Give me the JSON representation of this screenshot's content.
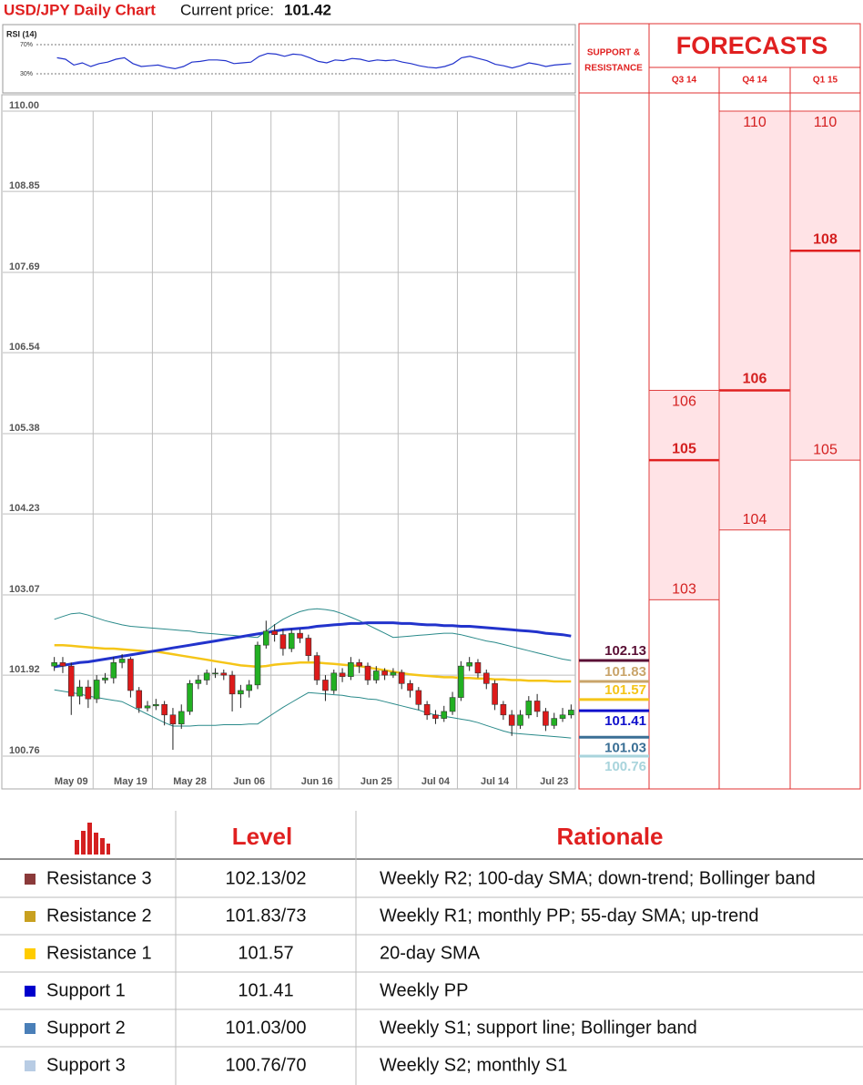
{
  "header": {
    "title": "USD/JPY Daily Chart",
    "price_label": "Current price:",
    "price": 101.42
  },
  "chart_data": [
    {
      "type": "line",
      "title": "RSI (14)",
      "color": "#2233cc",
      "values": [
        52,
        50,
        42,
        45,
        40,
        44,
        46,
        50,
        52,
        44,
        40,
        41,
        42,
        39,
        37,
        40,
        46,
        47,
        49,
        49,
        48,
        44,
        45,
        46,
        54,
        58,
        57,
        54,
        57,
        56,
        52,
        47,
        45,
        49,
        48,
        51,
        50,
        47,
        49,
        48,
        49,
        46,
        44,
        41,
        39,
        38,
        40,
        44,
        52,
        54,
        51,
        48,
        43,
        41,
        38,
        41,
        45,
        43,
        40,
        42,
        43,
        44
      ],
      "ylim": [
        6.25,
        90
      ],
      "yticks": [
        {
          "value": 30,
          "label": "30%"
        },
        {
          "value": 70,
          "label": "70%"
        }
      ]
    },
    {
      "type": "candlestick",
      "categories": [
        null,
        null,
        "May 09",
        null,
        null,
        null,
        null,
        null,
        null,
        "May 19",
        null,
        null,
        null,
        null,
        null,
        null,
        "May 28",
        null,
        null,
        null,
        null,
        null,
        null,
        "Jun 06",
        null,
        null,
        null,
        null,
        null,
        null,
        null,
        "Jun 16",
        null,
        null,
        null,
        null,
        null,
        null,
        "Jun 25",
        null,
        null,
        null,
        null,
        null,
        null,
        "Jul 04",
        null,
        null,
        null,
        null,
        null,
        null,
        "Jul 14",
        null,
        null,
        null,
        null,
        null,
        null,
        "Jul 23",
        null,
        null
      ],
      "open": [
        102.05,
        102.1,
        102.05,
        101.62,
        101.75,
        101.58,
        101.85,
        101.88,
        102.1,
        102.15,
        101.7,
        101.45,
        101.48,
        101.5,
        101.35,
        101.22,
        101.4,
        101.8,
        101.85,
        101.95,
        101.95,
        101.92,
        101.65,
        101.7,
        101.78,
        102.35,
        102.55,
        102.5,
        102.3,
        102.52,
        102.45,
        102.2,
        101.85,
        101.7,
        101.95,
        101.9,
        102.1,
        102.05,
        101.85,
        101.98,
        101.92,
        101.96,
        101.8,
        101.7,
        101.5,
        101.35,
        101.3,
        101.4,
        101.6,
        102.05,
        102.1,
        101.95,
        101.8,
        101.5,
        101.35,
        101.2,
        101.35,
        101.55,
        101.4,
        101.2,
        101.3,
        101.35
      ],
      "high": [
        102.18,
        102.18,
        102.1,
        101.85,
        101.85,
        101.92,
        101.95,
        102.18,
        102.22,
        102.18,
        101.75,
        101.55,
        101.58,
        101.55,
        101.45,
        101.5,
        101.85,
        101.92,
        102.0,
        102.02,
        102.0,
        101.98,
        101.78,
        101.85,
        102.4,
        102.7,
        102.65,
        102.58,
        102.58,
        102.58,
        102.5,
        102.25,
        101.92,
        102.0,
        102.02,
        102.18,
        102.15,
        102.1,
        102.05,
        102.02,
        102.02,
        102.0,
        101.85,
        101.75,
        101.55,
        101.42,
        101.48,
        101.68,
        102.12,
        102.18,
        102.15,
        102.0,
        101.85,
        101.55,
        101.42,
        101.42,
        101.62,
        101.65,
        101.45,
        101.38,
        101.45,
        101.5
      ],
      "low": [
        101.98,
        101.95,
        101.35,
        101.5,
        101.45,
        101.52,
        101.8,
        101.8,
        102.02,
        101.6,
        101.38,
        101.4,
        101.42,
        101.2,
        100.85,
        101.15,
        101.35,
        101.72,
        101.78,
        101.88,
        101.85,
        101.4,
        101.45,
        101.6,
        101.72,
        102.3,
        102.4,
        102.2,
        102.25,
        102.38,
        102.12,
        101.78,
        101.55,
        101.65,
        101.82,
        101.85,
        101.95,
        101.78,
        101.8,
        101.85,
        101.88,
        101.72,
        101.6,
        101.42,
        101.28,
        101.22,
        101.25,
        101.35,
        101.55,
        101.98,
        101.88,
        101.72,
        101.42,
        101.28,
        101.05,
        101.15,
        101.3,
        101.32,
        101.12,
        101.15,
        101.25,
        101.3
      ],
      "close": [
        102.1,
        102.05,
        101.62,
        101.75,
        101.58,
        101.85,
        101.88,
        102.1,
        102.15,
        101.7,
        101.45,
        101.48,
        101.5,
        101.35,
        101.22,
        101.4,
        101.8,
        101.85,
        101.95,
        101.95,
        101.92,
        101.65,
        101.7,
        101.78,
        102.35,
        102.55,
        102.5,
        102.3,
        102.52,
        102.45,
        102.2,
        101.85,
        101.7,
        101.95,
        101.9,
        102.1,
        102.05,
        101.85,
        101.98,
        101.92,
        101.96,
        101.8,
        101.7,
        101.5,
        101.35,
        101.3,
        101.4,
        101.6,
        102.05,
        102.1,
        101.95,
        101.8,
        101.5,
        101.35,
        101.2,
        101.35,
        101.55,
        101.4,
        101.2,
        101.3,
        101.35,
        101.42
      ],
      "up_color": "#22b022",
      "down_color": "#dd1a1a",
      "overlays": [
        {
          "color": "#2a8a8a",
          "width": 1,
          "values": [
            102.72,
            102.76,
            102.8,
            102.81,
            102.78,
            102.74,
            102.7,
            102.67,
            102.64,
            102.62,
            102.61,
            102.6,
            102.59,
            102.58,
            102.57,
            102.56,
            102.55,
            102.53,
            102.52,
            102.51,
            102.5,
            102.49,
            102.48,
            102.47,
            102.46,
            102.55,
            102.64,
            102.72,
            102.78,
            102.83,
            102.86,
            102.87,
            102.86,
            102.84,
            102.8,
            102.75,
            102.7,
            102.64,
            102.58,
            102.52,
            102.46,
            102.47,
            102.48,
            102.49,
            102.5,
            102.51,
            102.52,
            102.52,
            102.5,
            102.47,
            102.44,
            102.41,
            102.39,
            102.36,
            102.33,
            102.3,
            102.27,
            102.24,
            102.21,
            102.18,
            102.15,
            102.13
          ]
        },
        {
          "color": "#2a8a8a",
          "width": 1,
          "values": [
            101.71,
            101.69,
            101.67,
            101.65,
            101.62,
            101.6,
            101.58,
            101.56,
            101.54,
            101.48,
            101.42,
            101.36,
            101.3,
            101.24,
            101.19,
            101.19,
            101.19,
            101.2,
            101.2,
            101.2,
            101.21,
            101.21,
            101.21,
            101.22,
            101.22,
            101.3,
            101.38,
            101.46,
            101.53,
            101.6,
            101.67,
            101.66,
            101.65,
            101.64,
            101.63,
            101.61,
            101.6,
            101.58,
            101.57,
            101.54,
            101.51,
            101.48,
            101.45,
            101.42,
            101.38,
            101.35,
            101.33,
            101.31,
            101.29,
            101.27,
            101.24,
            101.2,
            101.16,
            101.12,
            101.09,
            101.08,
            101.07,
            101.06,
            101.05,
            101.04,
            101.03,
            101.02
          ]
        },
        {
          "color": "#f5c518",
          "width": 2.5,
          "values": [
            102.35,
            102.35,
            102.34,
            102.33,
            102.32,
            102.31,
            102.3,
            102.3,
            102.29,
            102.28,
            102.27,
            102.26,
            102.26,
            102.24,
            102.22,
            102.2,
            102.18,
            102.16,
            102.14,
            102.12,
            102.1,
            102.08,
            102.06,
            102.05,
            102.04,
            102.05,
            102.07,
            102.08,
            102.09,
            102.1,
            102.1,
            102.1,
            102.09,
            102.08,
            102.07,
            102.06,
            102.05,
            102.03,
            102.01,
            101.99,
            101.97,
            101.95,
            101.93,
            101.92,
            101.91,
            101.9,
            101.89,
            101.89,
            101.88,
            101.88,
            101.87,
            101.87,
            101.86,
            101.86,
            101.85,
            101.85,
            101.84,
            101.84,
            101.84,
            101.83,
            101.83,
            101.83
          ]
        },
        {
          "color": "#2233cc",
          "width": 3,
          "values": [
            102.04,
            102.06,
            102.08,
            102.1,
            102.11,
            102.13,
            102.15,
            102.17,
            102.19,
            102.21,
            102.23,
            102.25,
            102.27,
            102.29,
            102.31,
            102.33,
            102.35,
            102.37,
            102.39,
            102.41,
            102.43,
            102.45,
            102.47,
            102.49,
            102.51,
            102.53,
            102.55,
            102.57,
            102.58,
            102.59,
            102.6,
            102.62,
            102.63,
            102.64,
            102.65,
            102.66,
            102.66,
            102.67,
            102.67,
            102.67,
            102.67,
            102.66,
            102.66,
            102.65,
            102.64,
            102.64,
            102.63,
            102.63,
            102.62,
            102.62,
            102.61,
            102.6,
            102.59,
            102.58,
            102.57,
            102.56,
            102.55,
            102.54,
            102.52,
            102.51,
            102.5,
            102.48
          ]
        }
      ],
      "ylim": [
        100.29,
        110
      ],
      "yticks": [
        {
          "value": 110,
          "label": "110.00"
        },
        108.85,
        107.69,
        106.54,
        105.38,
        104.23,
        103.07,
        101.92,
        100.76
      ],
      "grid": true
    }
  ],
  "levels": {
    "title": [
      "SUPPORT &",
      "RESISTANCE"
    ],
    "current": 101.42,
    "values": [
      102.13,
      101.83,
      101.57,
      101.41,
      101.03,
      100.76
    ],
    "colors": [
      "#5a1035",
      "#c9a46a",
      "#f5c518",
      "#1010cc",
      "#3a6f95",
      "#a8d4dc"
    ]
  },
  "forecasts": {
    "title": "FORECASTS",
    "periods": [
      "Q3 14",
      "Q4 14",
      "Q1 15"
    ],
    "high": [
      106,
      110,
      110
    ],
    "low": [
      103,
      104,
      105
    ],
    "forecast": [
      105,
      106,
      108
    ]
  },
  "table": {
    "columns": [
      "Level",
      "Rationale"
    ],
    "rows": [
      {
        "name": "Resistance 3",
        "color": "#8b3a3a",
        "level": "102.13/02",
        "rationale": "Weekly R2; 100-day SMA; down-trend; Bollinger band"
      },
      {
        "name": "Resistance 2",
        "color": "#c8a020",
        "level": "101.83/73",
        "rationale": "Weekly R1; monthly PP; 55-day SMA; up-trend"
      },
      {
        "name": "Resistance 1",
        "color": "#ffcc00",
        "level": "101.57",
        "rationale": "20-day SMA"
      },
      {
        "name": "Support 1",
        "color": "#0000cc",
        "level": "101.41",
        "rationale": "Weekly PP"
      },
      {
        "name": "Support 2",
        "color": "#4a7fb8",
        "level": "101.03/00",
        "rationale": "Weekly S1; support line; Bollinger band"
      },
      {
        "name": "Support 3",
        "color": "#b8cce4",
        "level": "100.76/70",
        "rationale": "Weekly S2; monthly S1"
      }
    ]
  }
}
